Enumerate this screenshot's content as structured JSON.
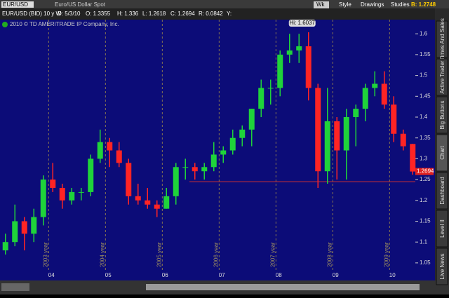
{
  "header": {
    "symbol": "EUR/USD",
    "description": "Euro/US Dollar Spot",
    "chart_name": "EUR/USD (BID) 10 y W",
    "date": "D: 5/3/10",
    "open": "O: 1.3355",
    "high": "H: 1.336",
    "low": "L: 1.2618",
    "close": "C: 1.2694",
    "range": "R: 0.0842",
    "vol": "Y:",
    "period": "Wk",
    "style": "Style",
    "drawings": "Drawings",
    "studies": "Studies",
    "bid": "B: 1.2748"
  },
  "side_tabs": [
    "Times And Sales",
    "Active Trader",
    "Big Buttons",
    "Chart",
    "Dashboard",
    "Level II",
    "Live News"
  ],
  "chart_data": {
    "type": "candlestick",
    "watermark": "2010 © TD AMERITRADE IP Company, Inc.",
    "hi_label": "Hi: 1.6037",
    "up_color": "#1fd33a",
    "down_color": "#ff2424",
    "open": [
      1.08,
      1.1,
      1.15,
      1.12,
      1.16,
      1.25,
      1.23,
      1.2,
      1.22,
      1.22,
      1.3,
      1.34,
      1.32,
      1.29,
      1.21,
      1.2,
      1.19,
      1.18,
      1.21,
      1.28,
      1.28,
      1.27,
      1.28,
      1.31,
      1.32,
      1.35,
      1.37,
      1.42,
      1.47,
      1.47,
      1.55,
      1.56,
      1.57,
      1.47,
      1.27,
      1.39,
      1.32,
      1.4,
      1.42,
      1.47,
      1.48,
      1.43,
      1.36,
      1.3355
    ],
    "high": [
      1.12,
      1.19,
      1.16,
      1.18,
      1.26,
      1.29,
      1.24,
      1.23,
      1.23,
      1.31,
      1.37,
      1.35,
      1.34,
      1.3,
      1.24,
      1.23,
      1.2,
      1.23,
      1.29,
      1.3,
      1.29,
      1.29,
      1.34,
      1.33,
      1.37,
      1.38,
      1.42,
      1.49,
      1.49,
      1.56,
      1.6,
      1.6,
      1.6037,
      1.48,
      1.47,
      1.4,
      1.42,
      1.43,
      1.48,
      1.51,
      1.51,
      1.45,
      1.37,
      1.336
    ],
    "low": [
      1.07,
      1.09,
      1.08,
      1.1,
      1.14,
      1.22,
      1.18,
      1.19,
      1.2,
      1.21,
      1.29,
      1.28,
      1.28,
      1.19,
      1.19,
      1.18,
      1.16,
      1.18,
      1.19,
      1.25,
      1.25,
      1.25,
      1.27,
      1.29,
      1.31,
      1.33,
      1.33,
      1.4,
      1.43,
      1.45,
      1.53,
      1.53,
      1.44,
      1.23,
      1.24,
      1.25,
      1.25,
      1.33,
      1.39,
      1.45,
      1.42,
      1.34,
      1.32,
      1.2618
    ],
    "close": [
      1.1,
      1.15,
      1.12,
      1.16,
      1.25,
      1.23,
      1.2,
      1.22,
      1.22,
      1.3,
      1.34,
      1.32,
      1.29,
      1.21,
      1.2,
      1.19,
      1.18,
      1.21,
      1.28,
      1.28,
      1.27,
      1.28,
      1.31,
      1.32,
      1.35,
      1.37,
      1.42,
      1.47,
      1.47,
      1.55,
      1.56,
      1.57,
      1.47,
      1.27,
      1.39,
      1.32,
      1.4,
      1.42,
      1.47,
      1.48,
      1.43,
      1.36,
      1.33,
      1.2694
    ],
    "support_level": 1.245,
    "xlim": [
      -0.5,
      43.5
    ],
    "xticks": [
      {
        "value": 5,
        "label": "04"
      },
      {
        "value": 11,
        "label": "05"
      },
      {
        "value": 17,
        "label": "06"
      },
      {
        "value": 23,
        "label": "07"
      },
      {
        "value": 29,
        "label": "08"
      },
      {
        "value": 35,
        "label": "09"
      },
      {
        "value": 41,
        "label": "10"
      }
    ],
    "year_labels": [
      "2003 year",
      "2004 year",
      "2005 year",
      "2006 year",
      "2007 year",
      "2008 year",
      "2009 year"
    ],
    "ylim": [
      1.033,
      1.634
    ],
    "yticks": [
      1.05,
      1.1,
      1.15,
      1.2,
      1.25,
      1.3,
      1.35,
      1.4,
      1.45,
      1.5,
      1.55,
      1.6
    ]
  }
}
